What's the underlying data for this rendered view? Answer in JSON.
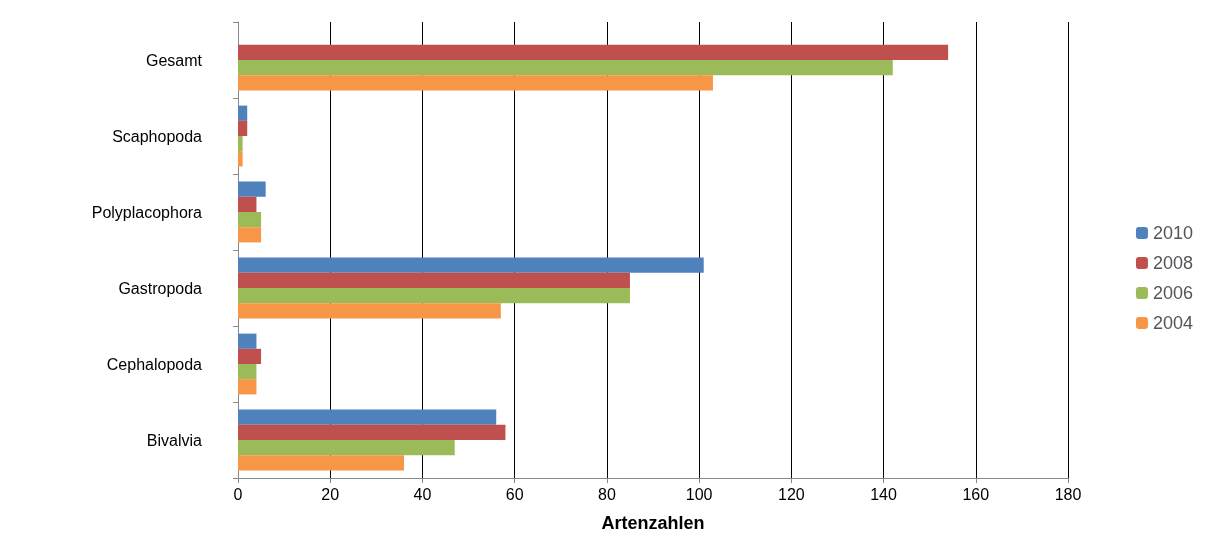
{
  "chart_data": {
    "type": "bar",
    "orientation": "horizontal",
    "xlabel": "Artenzahlen",
    "categories": [
      "Gesamt",
      "Scaphopoda",
      "Polyplacophora",
      "Gastropoda",
      "Cephalopoda",
      "Bivalvia"
    ],
    "series": [
      {
        "name": "2010",
        "color": "#4f81bd",
        "values": [
          null,
          2,
          6,
          101,
          4,
          56
        ]
      },
      {
        "name": "2008",
        "color": "#c0504d",
        "values": [
          154,
          2,
          4,
          85,
          5,
          58
        ]
      },
      {
        "name": "2006",
        "color": "#9bbb59",
        "values": [
          142,
          1,
          5,
          85,
          4,
          47
        ]
      },
      {
        "name": "2004",
        "color": "#f79646",
        "values": [
          103,
          1,
          5,
          57,
          4,
          36
        ]
      }
    ],
    "xlim": [
      0,
      180
    ],
    "xticks": [
      0,
      20,
      40,
      60,
      80,
      100,
      120,
      140,
      160,
      180
    ],
    "grid": "x",
    "legend": "right"
  }
}
